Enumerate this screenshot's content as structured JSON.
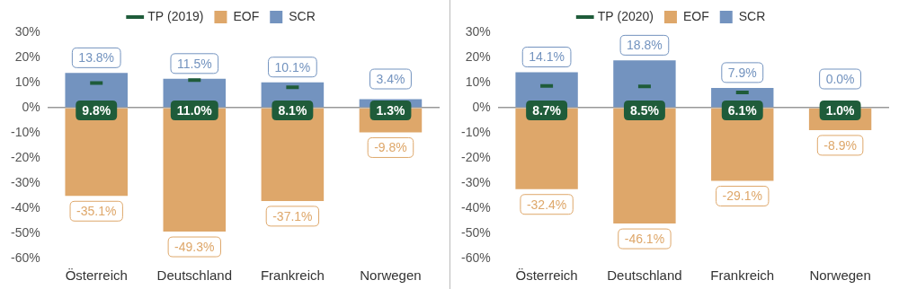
{
  "chart_data": [
    {
      "type": "bar",
      "categories": [
        "Österreich",
        "Deutschland",
        "Frankreich",
        "Norwegen"
      ],
      "series": [
        {
          "name": "EOF",
          "color": "#dea76a",
          "values": [
            -35.1,
            -49.3,
            -37.1,
            -9.8
          ],
          "value_labels": [
            "-35.1%",
            "-49.3%",
            "-37.1%",
            "-9.8%"
          ]
        },
        {
          "name": "SCR",
          "color": "#7393bf",
          "values": [
            13.8,
            11.5,
            10.1,
            3.4
          ],
          "value_labels": [
            "13.8%",
            "11.5%",
            "10.1%",
            "3.4%"
          ]
        },
        {
          "name": "TP (2019)",
          "type": "line",
          "marker": "dash",
          "color": "#1f5c3a",
          "values": [
            9.8,
            11.0,
            8.1,
            1.3
          ],
          "value_labels": [
            "9.8%",
            "11.0%",
            "8.1%",
            "1.3%"
          ]
        }
      ],
      "ylim": [
        -60,
        30
      ],
      "yticks": [
        {
          "value": -60,
          "label": "-60%"
        },
        {
          "value": -50,
          "label": "-50%"
        },
        {
          "value": -40,
          "label": "-40%"
        },
        {
          "value": -30,
          "label": "-30%"
        },
        {
          "value": -20,
          "label": "-20%"
        },
        {
          "value": -10,
          "label": "-10%"
        },
        {
          "value": 0,
          "label": "0%"
        },
        {
          "value": 10,
          "label": "10%"
        },
        {
          "value": 20,
          "label": "20%"
        },
        {
          "value": 30,
          "label": "30%"
        }
      ],
      "stacked": true,
      "grid": false,
      "legend": "top",
      "data_labels": true
    },
    {
      "type": "bar",
      "categories": [
        "Österreich",
        "Deutschland",
        "Frankreich",
        "Norwegen"
      ],
      "series": [
        {
          "name": "EOF",
          "color": "#dea76a",
          "values": [
            -32.4,
            -46.1,
            -29.1,
            -8.9
          ],
          "value_labels": [
            "-32.4%",
            "-46.1%",
            "-29.1%",
            "-8.9%"
          ]
        },
        {
          "name": "SCR",
          "color": "#7393bf",
          "values": [
            14.1,
            18.8,
            7.9,
            0.0
          ],
          "value_labels": [
            "14.1%",
            "18.8%",
            "7.9%",
            "0.0%"
          ]
        },
        {
          "name": "TP (2020)",
          "type": "line",
          "marker": "dash",
          "color": "#1f5c3a",
          "values": [
            8.7,
            8.5,
            6.1,
            1.0
          ],
          "value_labels": [
            "8.7%",
            "8.5%",
            "6.1%",
            "1.0%"
          ]
        }
      ],
      "ylim": [
        -60,
        30
      ],
      "yticks": [
        {
          "value": -60,
          "label": "-60%"
        },
        {
          "value": -50,
          "label": "-50%"
        },
        {
          "value": -40,
          "label": "-40%"
        },
        {
          "value": -30,
          "label": "-30%"
        },
        {
          "value": -20,
          "label": "-20%"
        },
        {
          "value": -10,
          "label": "-10%"
        },
        {
          "value": 0,
          "label": "0%"
        },
        {
          "value": 10,
          "label": "10%"
        },
        {
          "value": 20,
          "label": "20%"
        },
        {
          "value": 30,
          "label": "30%"
        }
      ],
      "stacked": true,
      "grid": false,
      "legend": "top",
      "data_labels": true
    }
  ]
}
